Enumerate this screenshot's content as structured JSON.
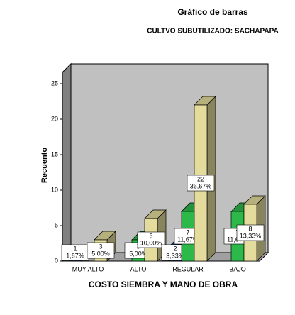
{
  "chart_data": {
    "type": "bar3d",
    "title": "Gráfico de barras",
    "subtitle": "CULTVO SUBUTILIZADO: SACHAPAPA",
    "ylabel": "Recuento",
    "xlabel": "COSTO SIEMBRA Y MANO DE OBRA",
    "categories": [
      "MUY ALTO",
      "ALTO",
      "REGULAR",
      "BAJO"
    ],
    "series": [
      {
        "color": "#1f3a73",
        "values": [
          1,
          null,
          2,
          null
        ],
        "value_labels": [
          "1,67%",
          null,
          "3,33%",
          null
        ]
      },
      {
        "color": "#2db84a",
        "values": [
          null,
          3,
          7,
          7
        ],
        "value_labels": [
          null,
          "5,00%",
          "11,67%",
          "11,67%"
        ]
      },
      {
        "color": "#e3dc9c",
        "values": [
          3,
          6,
          22,
          8
        ],
        "value_labels": [
          "5,00%",
          "10,00%",
          "36,67%",
          "13,33%"
        ]
      }
    ],
    "ylim": [
      0,
      27
    ],
    "yticks": [
      0,
      5,
      10,
      15,
      20,
      25
    ]
  }
}
